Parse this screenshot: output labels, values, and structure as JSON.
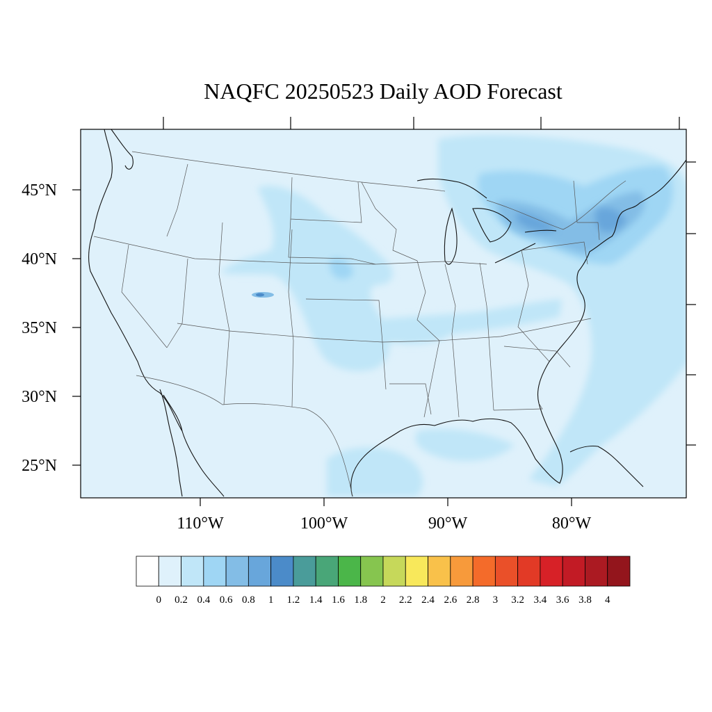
{
  "title": "NAQFC 20250523 Daily AOD Forecast",
  "map": {
    "lat_labels": [
      "45°N",
      "40°N",
      "35°N",
      "30°N",
      "25°N"
    ],
    "lon_labels": [
      "110°W",
      "100°W",
      "90°W",
      "80°W"
    ]
  },
  "colorbar": {
    "colors": [
      "#ffffff",
      "#dff1fb",
      "#c0e6f8",
      "#9fd6f4",
      "#83bde6",
      "#68a6db",
      "#4b8bc9",
      "#4a9c9a",
      "#49a678",
      "#4bb649",
      "#86c54f",
      "#c6d85a",
      "#f8e85b",
      "#f9c14a",
      "#f79a3b",
      "#f46b2a",
      "#ea5029",
      "#e23a26",
      "#d72127",
      "#c21b25",
      "#ab1a22",
      "#93151c"
    ],
    "labels": [
      "0",
      "0.2",
      "0.4",
      "0.6",
      "0.8",
      "1",
      "1.2",
      "1.4",
      "1.6",
      "1.8",
      "2",
      "2.2",
      "2.4",
      "2.6",
      "2.8",
      "3",
      "3.2",
      "3.4",
      "3.6",
      "3.8",
      "4"
    ]
  }
}
